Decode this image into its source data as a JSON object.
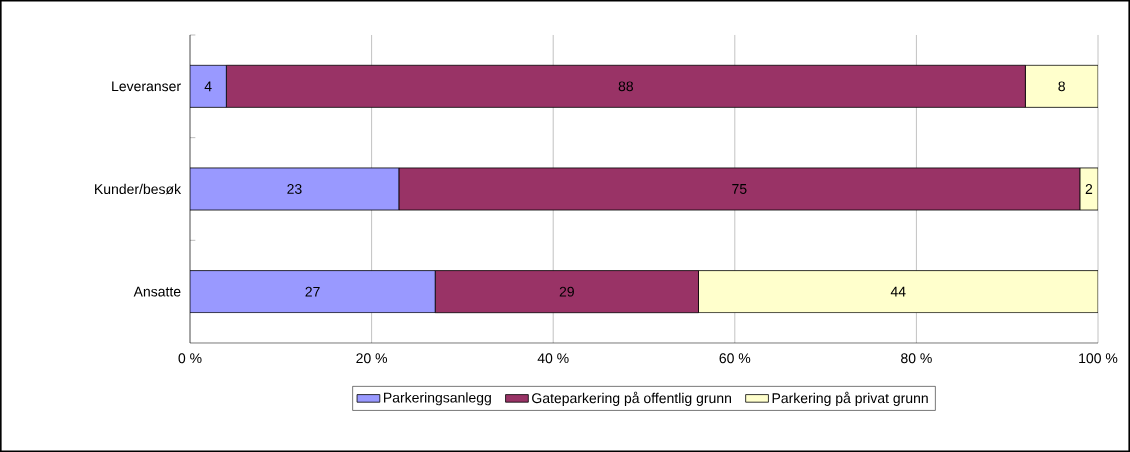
{
  "chart_data": {
    "type": "bar",
    "orientation": "horizontal",
    "stacked": true,
    "categories": [
      "Leveranser",
      "Kunder/besøk",
      "Ansatte"
    ],
    "series": [
      {
        "name": "Parkeringsanlegg",
        "color": "#9999ff",
        "values": [
          4,
          23,
          27
        ]
      },
      {
        "name": "Gateparkering på offentlig grunn",
        "color": "#993366",
        "values": [
          88,
          75,
          29
        ]
      },
      {
        "name": "Parkering på privat grunn",
        "color": "#ffffcc",
        "values": [
          8,
          2,
          44
        ]
      }
    ],
    "xlim": [
      0,
      100
    ],
    "xticks": [
      {
        "value": 0,
        "label": "0 %"
      },
      {
        "value": 20,
        "label": "20 %"
      },
      {
        "value": 40,
        "label": "40 %"
      },
      {
        "value": 60,
        "label": "60 %"
      },
      {
        "value": 80,
        "label": "80 %"
      },
      {
        "value": 100,
        "label": "100 %"
      }
    ],
    "grid": "x",
    "legend": "bottom",
    "data_labels": true
  }
}
